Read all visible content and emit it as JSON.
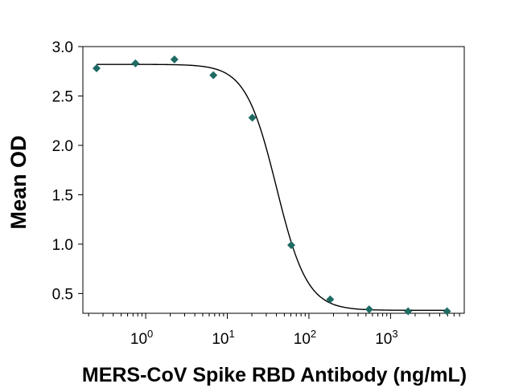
{
  "chart_data": {
    "type": "scatter",
    "xlabel": "MERS-CoV Spike RBD Antibody (ng/mL)",
    "ylabel": "Mean OD",
    "x_scale": "log",
    "xlim": [
      0.17,
      8000
    ],
    "ylim": [
      0.3,
      3.0
    ],
    "y_ticks": [
      "0.5",
      "1.0",
      "1.5",
      "2.0",
      "2.5",
      "3.0"
    ],
    "x_ticks": [
      {
        "base": "10",
        "exp": "0",
        "value": 1
      },
      {
        "base": "10",
        "exp": "1",
        "value": 10
      },
      {
        "base": "10",
        "exp": "2",
        "value": 100
      },
      {
        "base": "10",
        "exp": "3",
        "value": 1000
      }
    ],
    "grid": false,
    "marker_color": "#1f6b64",
    "line_color": "#000000",
    "series": [
      {
        "x": [
          0.25,
          0.75,
          2.25,
          6.75,
          20.25,
          60.75,
          182.25,
          546.75,
          1640.25,
          4920.75
        ],
        "y": [
          2.78,
          2.83,
          2.87,
          2.71,
          2.28,
          0.99,
          0.44,
          0.34,
          0.32,
          0.32
        ]
      }
    ],
    "fit": {
      "bottom": 0.33,
      "top": 2.82,
      "ec50": 40,
      "hill": 2.3
    }
  }
}
